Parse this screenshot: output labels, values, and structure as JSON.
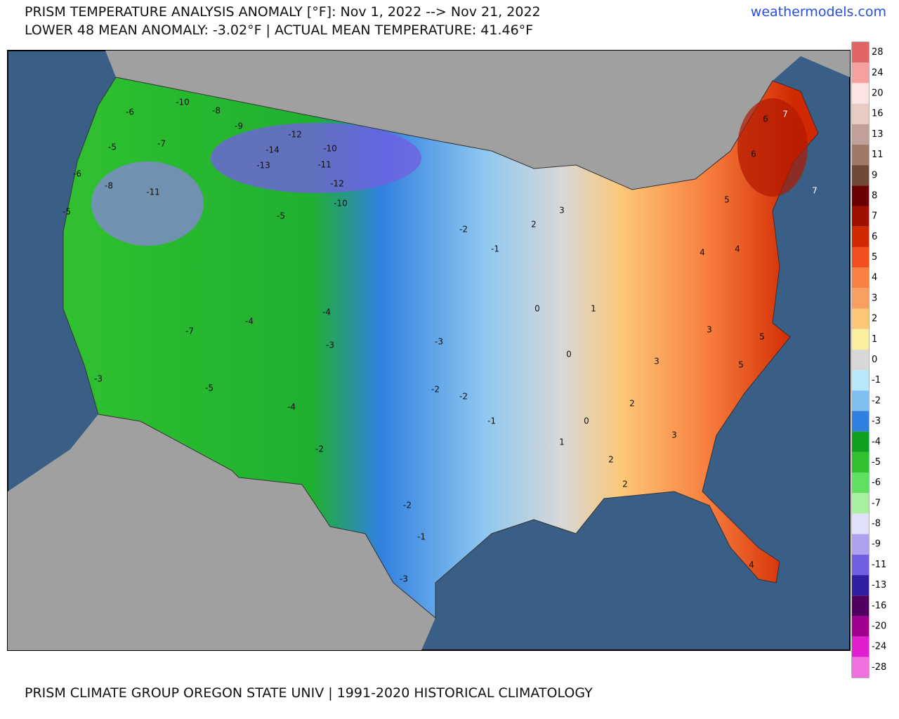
{
  "header": {
    "title": "PRISM TEMPERATURE ANALYSIS ANOMALY [°F]: Nov 1, 2022 --> Nov 21, 2022",
    "subtitle": "LOWER 48 MEAN ANOMALY: -3.02°F | ACTUAL MEAN TEMPERATURE: 41.46°F",
    "site": "weathermodels.com"
  },
  "legend": {
    "entries": [
      {
        "value": 28,
        "color": "#e06666"
      },
      {
        "value": 24,
        "color": "#f4a0a0"
      },
      {
        "value": 20,
        "color": "#fce4e4"
      },
      {
        "value": 16,
        "color": "#e8ccc4"
      },
      {
        "value": 13,
        "color": "#c0a098"
      },
      {
        "value": 11,
        "color": "#a07868"
      },
      {
        "value": 9,
        "color": "#704838"
      },
      {
        "value": 8,
        "color": "#6a0000"
      },
      {
        "value": 7,
        "color": "#a01000"
      },
      {
        "value": 6,
        "color": "#d02800"
      },
      {
        "value": 5,
        "color": "#f05020"
      },
      {
        "value": 4,
        "color": "#f88040"
      },
      {
        "value": 3,
        "color": "#f8a060"
      },
      {
        "value": 2,
        "color": "#fcc878"
      },
      {
        "value": 1,
        "color": "#fcf0a0"
      },
      {
        "value": 0,
        "color": "#d8d8d8"
      },
      {
        "value": -1,
        "color": "#b8e8f8"
      },
      {
        "value": -2,
        "color": "#80c0f0"
      },
      {
        "value": -3,
        "color": "#3080e0"
      },
      {
        "value": -4,
        "color": "#10a020"
      },
      {
        "value": -5,
        "color": "#30c030"
      },
      {
        "value": -6,
        "color": "#60e060"
      },
      {
        "value": -7,
        "color": "#a8f0a0"
      },
      {
        "value": -8,
        "color": "#e0e0f8"
      },
      {
        "value": -9,
        "color": "#b0a0f0"
      },
      {
        "value": -11,
        "color": "#7060e0"
      },
      {
        "value": -13,
        "color": "#3020a0"
      },
      {
        "value": -16,
        "color": "#500060"
      },
      {
        "value": -20,
        "color": "#a00090"
      },
      {
        "value": -24,
        "color": "#e020d0"
      },
      {
        "value": -28,
        "color": "#f070e0"
      }
    ]
  },
  "map": {
    "labels": [
      -10,
      -8,
      -9,
      -12,
      -14,
      -10,
      -11,
      -10,
      -12,
      -13,
      -6,
      -8,
      -11,
      -7,
      -5,
      -5,
      -6,
      -7,
      -5,
      -4,
      -5,
      -3,
      -4,
      -4,
      -3,
      -2,
      -3,
      -2,
      -1,
      -2,
      -1,
      0,
      0,
      1,
      2,
      3,
      2,
      3,
      4,
      5,
      6,
      7,
      7,
      6,
      5,
      4,
      3,
      5,
      4,
      3,
      2,
      -2,
      -3,
      -2,
      -1,
      0,
      1,
      2
    ]
  },
  "footer": "PRISM CLIMATE GROUP OREGON STATE UNIV | 1991-2020 HISTORICAL CLIMATOLOGY"
}
